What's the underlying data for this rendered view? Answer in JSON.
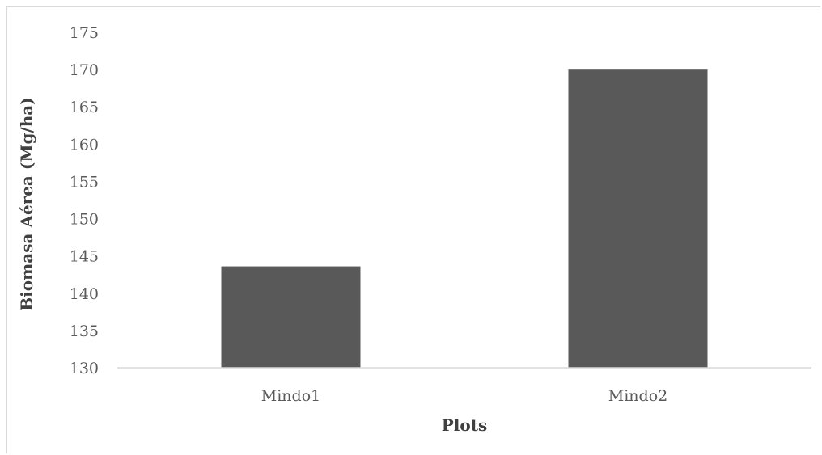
{
  "chart_data": {
    "type": "bar",
    "categories": [
      "Mindo1",
      "Mindo2"
    ],
    "values": [
      143.6,
      170.1
    ],
    "xlabel": "Plots",
    "ylabel": "Biomasa Aérea (Mg/ha)",
    "ylim": [
      130,
      175
    ],
    "yticks": [
      130,
      135,
      140,
      145,
      150,
      155,
      160,
      165,
      170,
      175
    ],
    "grid": false,
    "legend": "none",
    "bar_color": "#595959",
    "axis_color": "#d9d9d9",
    "text_color": "#595959"
  }
}
